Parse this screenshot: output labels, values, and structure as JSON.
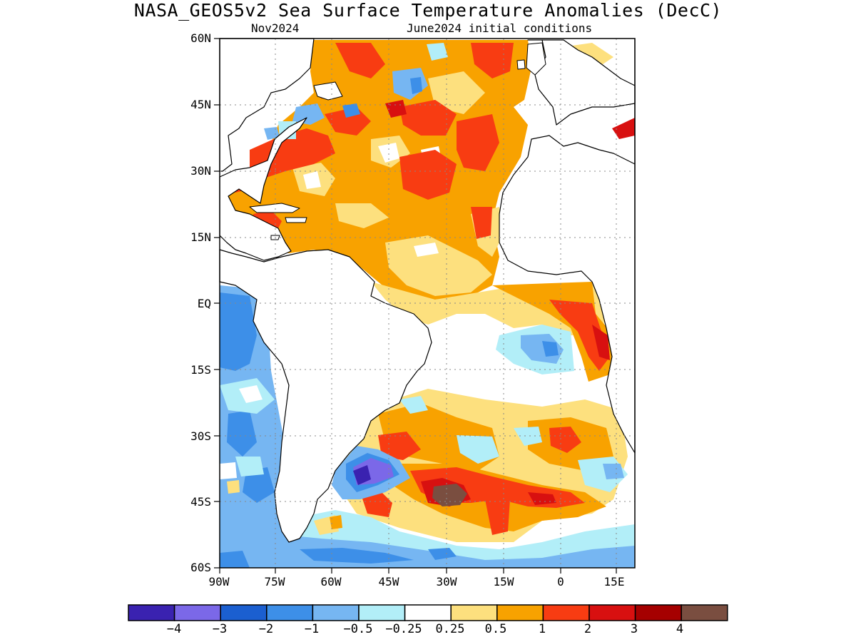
{
  "title": "NASA_GEOS5v2 Sea Surface Temperature Anomalies (DecC)",
  "subtitle_left": "Nov2024",
  "subtitle_right": "June2024 initial conditions",
  "lat_labels": [
    "60N",
    "45N",
    "30N",
    "15N",
    "EQ",
    "15S",
    "30S",
    "45S",
    "60S"
  ],
  "lon_labels": [
    "90W",
    "75W",
    "60W",
    "45W",
    "30W",
    "15W",
    "0",
    "15E"
  ],
  "colorbar": {
    "colors": [
      "#3a22b0",
      "#7b68e8",
      "#1b5fd0",
      "#3d8fe8",
      "#76b6f2",
      "#b2eef8",
      "#ffffff",
      "#fde07e",
      "#f8a200",
      "#f83c12",
      "#d81010",
      "#a50000",
      "#7a4e40"
    ],
    "labels": [
      "−4",
      "−3",
      "−2",
      "−1",
      "−0.5",
      "−0.25",
      "0.25",
      "0.5",
      "1",
      "2",
      "3",
      "4"
    ]
  }
}
